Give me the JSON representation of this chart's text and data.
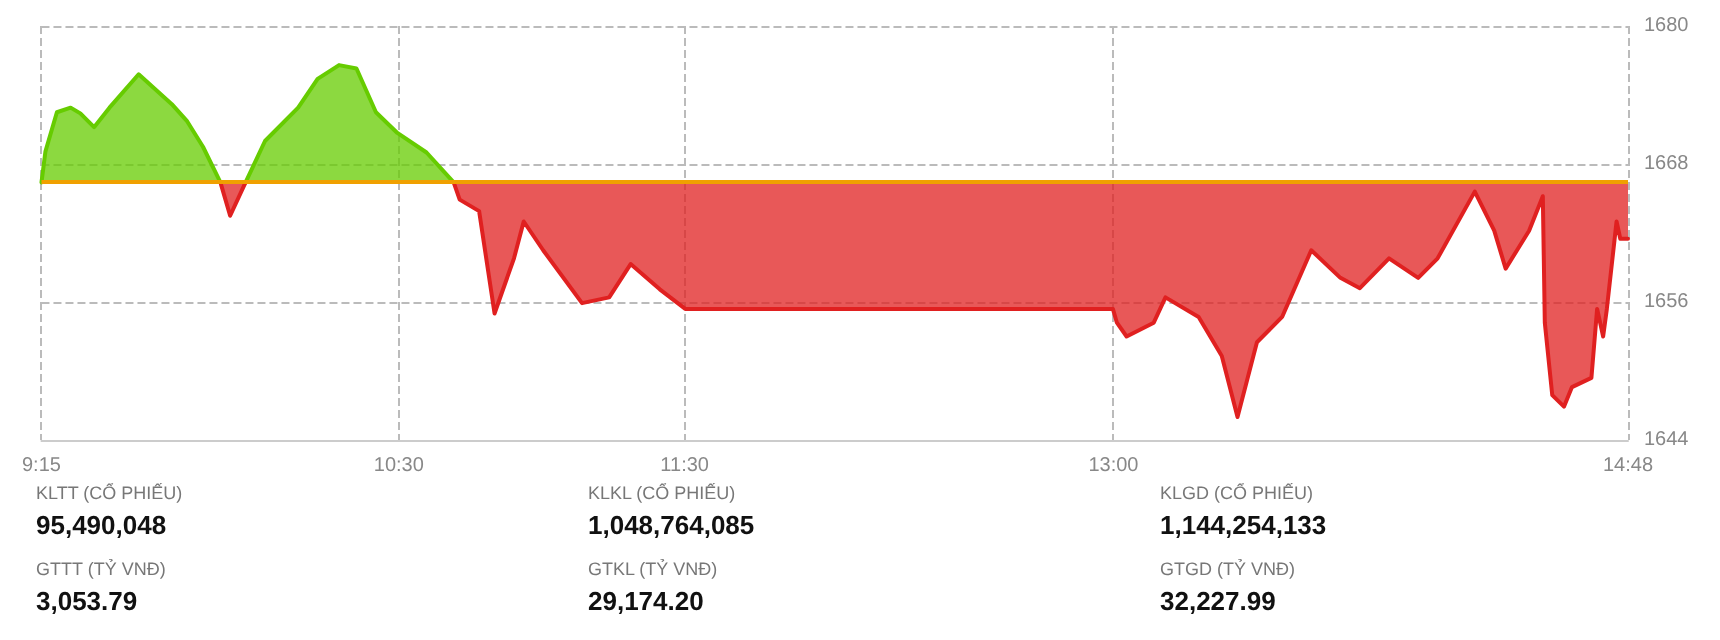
{
  "chart_data": {
    "type": "line",
    "x": [
      9.25,
      9.264,
      9.304,
      9.352,
      9.386,
      9.434,
      9.488,
      9.59,
      9.706,
      9.76,
      9.815,
      9.876,
      9.91,
      9.964,
      10.032,
      10.148,
      10.216,
      10.291,
      10.352,
      10.42,
      10.495,
      10.597,
      10.692,
      10.713,
      10.781,
      10.835,
      10.903,
      10.937,
      11.005,
      11.141,
      11.236,
      11.311,
      11.413,
      11.502,
      12.998,
      13.012,
      13.046,
      13.141,
      13.182,
      13.298,
      13.379,
      13.434,
      13.502,
      13.59,
      13.692,
      13.794,
      13.862,
      13.964,
      14.066,
      14.134,
      14.264,
      14.332,
      14.372,
      14.454,
      14.502,
      14.509,
      14.535,
      14.576,
      14.604,
      14.672,
      14.692,
      14.713,
      14.726,
      14.76,
      14.773,
      14.8
    ],
    "series": [
      {
        "color": "#66cc00",
        "values": [
          1666.4,
          1669.1,
          1672.5,
          1672.9,
          1672.4,
          1671.2,
          1672.9,
          1675.8,
          1673.2,
          1671.7,
          1669.5,
          1666.4,
          null,
          1666.4,
          1670.0,
          1672.9,
          1675.4,
          1676.6,
          1676.3,
          1672.5,
          1670.7,
          1669.0,
          1666.4,
          null,
          null,
          null,
          null,
          null,
          null,
          null,
          null,
          null,
          null,
          null,
          null,
          null,
          null,
          null,
          null,
          null,
          null,
          null,
          null,
          null,
          null,
          null,
          null,
          null,
          null,
          null,
          null,
          null,
          null,
          null,
          null,
          null,
          null,
          null,
          null,
          null,
          null,
          null,
          null,
          null,
          null,
          null
        ],
        "lower": [
          1666.4,
          1666.4,
          1666.4,
          1666.4,
          1666.4,
          1666.4,
          1666.4,
          1666.4,
          1666.4,
          1666.4,
          1666.4,
          1666.4,
          null,
          1666.4,
          1666.4,
          1666.4,
          1666.4,
          1666.4,
          1666.4,
          1666.4,
          1666.4,
          1666.4,
          1666.4,
          null,
          null,
          null,
          null,
          null,
          null,
          null,
          null,
          null,
          null,
          null,
          null,
          null,
          null,
          null,
          null,
          null,
          null,
          null,
          null,
          null,
          null,
          null,
          null,
          null,
          null,
          null,
          null,
          null,
          null,
          null,
          null,
          null,
          null,
          null,
          null,
          null,
          null,
          null,
          null,
          null,
          null,
          null
        ],
        "upper": [
          1666.4,
          1669.1,
          1672.5,
          1672.9,
          1672.4,
          1671.2,
          1672.9,
          1675.8,
          1673.2,
          1671.7,
          1669.5,
          1666.4,
          null,
          1666.4,
          1670.0,
          1672.9,
          1675.4,
          1676.6,
          1676.3,
          1672.5,
          1670.7,
          1669.0,
          1666.4,
          null,
          null,
          null,
          null,
          null,
          null,
          null,
          null,
          null,
          null,
          null,
          null,
          null,
          null,
          null,
          null,
          null,
          null,
          null,
          null,
          null,
          null,
          null,
          null,
          null,
          null,
          null,
          null,
          null,
          null,
          null,
          null,
          null,
          null,
          null,
          null,
          null,
          null,
          null,
          null,
          null,
          null,
          null
        ]
      },
      {
        "color": "#e02020",
        "values": [
          null,
          null,
          null,
          null,
          null,
          null,
          null,
          null,
          null,
          null,
          null,
          1666.4,
          1663.5,
          1666.4,
          null,
          null,
          null,
          null,
          null,
          null,
          null,
          null,
          1666.4,
          1664.9,
          1663.9,
          1655.0,
          1659.8,
          1663.0,
          1660.5,
          1655.9,
          1656.4,
          1659.3,
          1657.1,
          1655.4,
          1655.4,
          1654.2,
          1653.0,
          1654.2,
          1656.4,
          1654.7,
          1651.3,
          1646.0,
          1652.5,
          1654.7,
          1660.5,
          1658.1,
          1657.2,
          1659.8,
          1658.1,
          1659.8,
          1665.6,
          1662.2,
          1658.9,
          1662.2,
          1665.2,
          1654.2,
          1647.9,
          1646.9,
          1648.6,
          1649.4,
          1655.4,
          1653.0,
          1655.4,
          1663.0,
          1661.5,
          1661.5
        ],
        "lower": [
          null,
          null,
          null,
          null,
          null,
          null,
          null,
          null,
          null,
          null,
          null,
          1666.4,
          1663.5,
          1666.4,
          null,
          null,
          null,
          null,
          null,
          null,
          null,
          null,
          1666.4,
          1664.9,
          1663.9,
          1655.0,
          1659.8,
          1663.0,
          1660.5,
          1655.9,
          1656.4,
          1659.3,
          1657.1,
          1655.4,
          1655.4,
          1654.2,
          1653.0,
          1654.2,
          1656.4,
          1654.7,
          1651.3,
          1646.0,
          1652.5,
          1654.7,
          1660.5,
          1658.1,
          1657.2,
          1659.8,
          1658.1,
          1659.8,
          1665.6,
          1662.2,
          1658.9,
          1662.2,
          1665.2,
          1654.2,
          1647.9,
          1646.9,
          1648.6,
          1649.4,
          1655.4,
          1653.0,
          1655.4,
          1663.0,
          1661.5,
          1661.5
        ],
        "upper": [
          null,
          null,
          null,
          null,
          null,
          null,
          null,
          null,
          null,
          null,
          null,
          1666.4,
          1666.4,
          1666.4,
          null,
          null,
          null,
          null,
          null,
          null,
          null,
          null,
          1666.4,
          1666.4,
          1666.4,
          1666.4,
          1666.4,
          1666.4,
          1666.4,
          1666.4,
          1666.4,
          1666.4,
          1666.4,
          1666.4,
          1666.4,
          1666.4,
          1666.4,
          1666.4,
          1666.4,
          1666.4,
          1666.4,
          1666.4,
          1666.4,
          1666.4,
          1666.4,
          1666.4,
          1666.4,
          1666.4,
          1666.4,
          1666.4,
          1666.4,
          1666.4,
          1666.4,
          1666.4,
          1666.4,
          1666.4,
          1666.4,
          1666.4,
          1666.4,
          1666.4,
          1666.4,
          1666.4,
          1666.4,
          1666.4,
          1666.4,
          1666.4
        ]
      }
    ],
    "xlim": [
      9.25,
      14.8
    ],
    "xticks": [
      {
        "value": 9.25,
        "label": "9:15"
      },
      {
        "value": 10.5,
        "label": "10:30"
      },
      {
        "value": 11.5,
        "label": "11:30"
      },
      {
        "value": 13,
        "label": "13:00"
      },
      {
        "value": 14.8,
        "label": "14:48"
      }
    ],
    "ylim": [
      1644,
      1680
    ],
    "yticks": [
      1644,
      1656,
      1668,
      1680
    ],
    "ref_lines": [
      {
        "axis": "y",
        "value": 1666.4,
        "label": null,
        "color": "#f0a000"
      }
    ],
    "grid": true,
    "marker": "none",
    "line_style": "solid",
    "annotations": [
      "KLTT (CỔ PHIẾU)",
      "95,490,048",
      "GTTT (TỶ VNĐ)",
      "3,053.79",
      "KLKL (CỔ PHIẾU)",
      "1,048,764,085",
      "GTKL (TỶ VNĐ)",
      "29,174.20",
      "KLGD (CỔ PHIẾU)",
      "1,144,254,133",
      "GTGD (TỶ VNĐ)",
      "32,227.99"
    ]
  }
}
